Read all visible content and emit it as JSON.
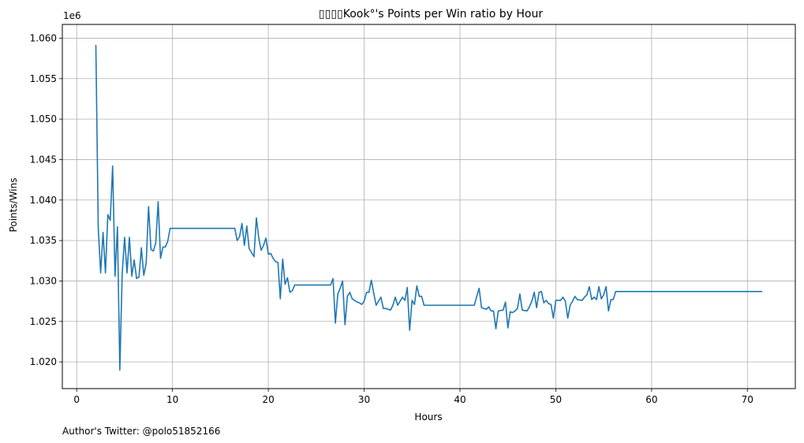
{
  "chart_data": {
    "type": "line",
    "title": "▯▯▯▯Kook°'s Points per Win ratio by Hour",
    "xlabel": "Hours",
    "ylabel": "Points/Wins",
    "y_multiplier_label": "1e6",
    "xlim": [
      -1.5,
      75
    ],
    "ylim": [
      1.0167,
      1.0617
    ],
    "x_ticks": [
      0,
      10,
      20,
      30,
      40,
      50,
      60,
      70
    ],
    "y_ticks": [
      1.02,
      1.025,
      1.03,
      1.035,
      1.04,
      1.045,
      1.05,
      1.055,
      1.06
    ],
    "x_tick_labels": [
      "0",
      "10",
      "20",
      "30",
      "40",
      "50",
      "60",
      "70"
    ],
    "y_tick_labels": [
      "1.020",
      "1.025",
      "1.030",
      "1.035",
      "1.040",
      "1.045",
      "1.050",
      "1.055",
      "1.060"
    ],
    "grid": true,
    "series": [
      {
        "color": "#1f77b4",
        "points": [
          [
            2.0,
            1.0591
          ],
          [
            2.25,
            1.0365
          ],
          [
            2.5,
            1.031
          ],
          [
            2.75,
            1.036
          ],
          [
            3.0,
            1.031
          ],
          [
            3.25,
            1.0382
          ],
          [
            3.5,
            1.0375
          ],
          [
            3.75,
            1.0442
          ],
          [
            4.0,
            1.0306
          ],
          [
            4.25,
            1.0367
          ],
          [
            4.5,
            1.019
          ],
          [
            4.75,
            1.031
          ],
          [
            5.0,
            1.0354
          ],
          [
            5.25,
            1.031
          ],
          [
            5.5,
            1.0354
          ],
          [
            5.75,
            1.0306
          ],
          [
            6.0,
            1.0326
          ],
          [
            6.25,
            1.0303
          ],
          [
            6.5,
            1.0305
          ],
          [
            6.75,
            1.0341
          ],
          [
            7.0,
            1.0307
          ],
          [
            7.25,
            1.0322
          ],
          [
            7.5,
            1.0392
          ],
          [
            7.75,
            1.0339
          ],
          [
            8.0,
            1.0337
          ],
          [
            8.25,
            1.0347
          ],
          [
            8.5,
            1.0398
          ],
          [
            8.75,
            1.0328
          ],
          [
            9.0,
            1.0342
          ],
          [
            9.25,
            1.0342
          ],
          [
            9.5,
            1.0349
          ],
          [
            9.75,
            1.0365
          ],
          [
            10.0,
            1.0365
          ],
          [
            16.5,
            1.0365
          ],
          [
            16.75,
            1.035
          ],
          [
            17.0,
            1.0355
          ],
          [
            17.25,
            1.0371
          ],
          [
            17.5,
            1.0344
          ],
          [
            17.75,
            1.0368
          ],
          [
            18.0,
            1.034
          ],
          [
            18.25,
            1.0335
          ],
          [
            18.5,
            1.033
          ],
          [
            18.75,
            1.0378
          ],
          [
            19.0,
            1.0353
          ],
          [
            19.25,
            1.0338
          ],
          [
            19.5,
            1.0344
          ],
          [
            19.75,
            1.0353
          ],
          [
            20.0,
            1.0333
          ],
          [
            20.25,
            1.0334
          ],
          [
            20.5,
            1.0328
          ],
          [
            20.75,
            1.0324
          ],
          [
            21.0,
            1.0323
          ],
          [
            21.25,
            1.0278
          ],
          [
            21.5,
            1.0327
          ],
          [
            21.75,
            1.0296
          ],
          [
            22.0,
            1.0304
          ],
          [
            22.25,
            1.0286
          ],
          [
            22.5,
            1.0288
          ],
          [
            22.75,
            1.0295
          ],
          [
            26.5,
            1.0295
          ],
          [
            26.75,
            1.0303
          ],
          [
            27.0,
            1.0248
          ],
          [
            27.25,
            1.0284
          ],
          [
            27.5,
            1.0291
          ],
          [
            27.75,
            1.03
          ],
          [
            28.0,
            1.0246
          ],
          [
            28.25,
            1.0281
          ],
          [
            28.5,
            1.0286
          ],
          [
            28.75,
            1.0278
          ],
          [
            29.0,
            1.0276
          ],
          [
            29.25,
            1.0274
          ],
          [
            29.5,
            1.0273
          ],
          [
            29.75,
            1.0271
          ],
          [
            30.0,
            1.0275
          ],
          [
            30.25,
            1.0286
          ],
          [
            30.5,
            1.0286
          ],
          [
            30.75,
            1.0301
          ],
          [
            31.0,
            1.0285
          ],
          [
            31.25,
            1.027
          ],
          [
            31.5,
            1.0275
          ],
          [
            31.75,
            1.028
          ],
          [
            32.0,
            1.0266
          ],
          [
            32.25,
            1.0266
          ],
          [
            32.75,
            1.0264
          ],
          [
            33.0,
            1.027
          ],
          [
            33.25,
            1.028
          ],
          [
            33.5,
            1.027
          ],
          [
            33.75,
            1.0275
          ],
          [
            34.0,
            1.028
          ],
          [
            34.25,
            1.0276
          ],
          [
            34.5,
            1.0292
          ],
          [
            34.75,
            1.0239
          ],
          [
            35.0,
            1.0276
          ],
          [
            35.25,
            1.0271
          ],
          [
            35.5,
            1.0294
          ],
          [
            35.75,
            1.0281
          ],
          [
            36.0,
            1.0281
          ],
          [
            36.25,
            1.027
          ],
          [
            41.5,
            1.027
          ],
          [
            41.75,
            1.0281
          ],
          [
            42.0,
            1.0291
          ],
          [
            42.25,
            1.0267
          ],
          [
            42.75,
            1.0265
          ],
          [
            43.0,
            1.0268
          ],
          [
            43.25,
            1.0263
          ],
          [
            43.5,
            1.0263
          ],
          [
            43.75,
            1.0241
          ],
          [
            44.0,
            1.0263
          ],
          [
            44.5,
            1.0264
          ],
          [
            44.75,
            1.0274
          ],
          [
            45.0,
            1.0242
          ],
          [
            45.25,
            1.0262
          ],
          [
            45.5,
            1.0261
          ],
          [
            45.75,
            1.0263
          ],
          [
            46.0,
            1.0266
          ],
          [
            46.25,
            1.0284
          ],
          [
            46.5,
            1.0264
          ],
          [
            47.0,
            1.0263
          ],
          [
            47.25,
            1.0268
          ],
          [
            47.5,
            1.0275
          ],
          [
            47.75,
            1.0286
          ],
          [
            48.0,
            1.0267
          ],
          [
            48.25,
            1.0286
          ],
          [
            48.5,
            1.0287
          ],
          [
            48.75,
            1.0273
          ],
          [
            49.0,
            1.0276
          ],
          [
            49.25,
            1.0272
          ],
          [
            49.5,
            1.0271
          ],
          [
            49.75,
            1.0254
          ],
          [
            50.0,
            1.0276
          ],
          [
            50.25,
            1.0276
          ],
          [
            50.5,
            1.0276
          ],
          [
            50.75,
            1.028
          ],
          [
            51.0,
            1.0275
          ],
          [
            51.25,
            1.0254
          ],
          [
            51.5,
            1.027
          ],
          [
            51.75,
            1.0275
          ],
          [
            52.0,
            1.0281
          ],
          [
            52.25,
            1.0277
          ],
          [
            52.75,
            1.0276
          ],
          [
            53.0,
            1.028
          ],
          [
            53.25,
            1.0283
          ],
          [
            53.5,
            1.0293
          ],
          [
            53.75,
            1.0277
          ],
          [
            54.0,
            1.028
          ],
          [
            54.25,
            1.0277
          ],
          [
            54.5,
            1.0293
          ],
          [
            54.75,
            1.0278
          ],
          [
            55.0,
            1.0283
          ],
          [
            55.25,
            1.0293
          ],
          [
            55.5,
            1.0263
          ],
          [
            55.75,
            1.0277
          ],
          [
            56.0,
            1.0277
          ],
          [
            56.25,
            1.0287
          ],
          [
            71.5,
            1.0287
          ]
        ]
      }
    ]
  },
  "footer": {
    "credit": "Author's Twitter: @polo51852166"
  }
}
